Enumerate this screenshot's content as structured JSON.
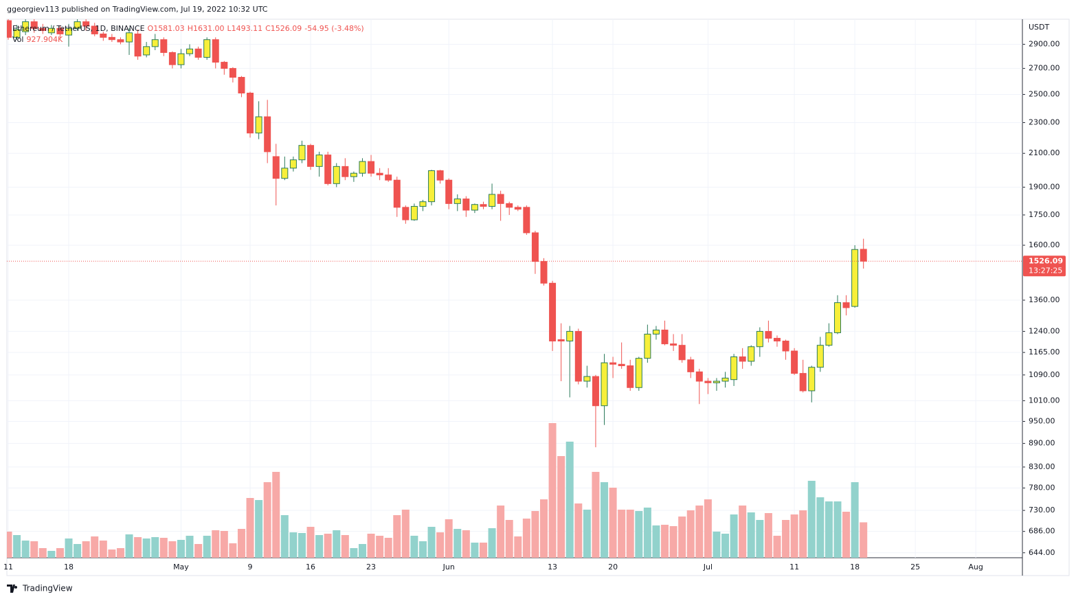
{
  "header": {
    "published": "ggeorgiev113 published on TradingView.com, Jul 19, 2022 10:32 UTC",
    "logo": "TradingView"
  },
  "chart_data": {
    "type": "candlestick",
    "title": "Ethereum / TetherUS, 1D, BINANCE",
    "ohlc_legend": [
      "O1581.03",
      "H1631.00",
      "L1493.11",
      "C1526.09",
      "-54.95 (-3.48%)"
    ],
    "volume_legend": {
      "name": "Vol",
      "value_label": "927.904K"
    },
    "currency": "USDT",
    "countdown": "13:27:25",
    "dates": [
      "2022-04-11",
      "2022-04-12",
      "2022-04-13",
      "2022-04-14",
      "2022-04-15",
      "2022-04-16",
      "2022-04-17",
      "2022-04-18",
      "2022-04-19",
      "2022-04-20",
      "2022-04-21",
      "2022-04-22",
      "2022-04-23",
      "2022-04-24",
      "2022-04-25",
      "2022-04-26",
      "2022-04-27",
      "2022-04-28",
      "2022-04-29",
      "2022-04-30",
      "2022-05-01",
      "2022-05-02",
      "2022-05-03",
      "2022-05-04",
      "2022-05-05",
      "2022-05-06",
      "2022-05-07",
      "2022-05-08",
      "2022-05-09",
      "2022-05-10",
      "2022-05-11",
      "2022-05-12",
      "2022-05-13",
      "2022-05-14",
      "2022-05-15",
      "2022-05-16",
      "2022-05-17",
      "2022-05-18",
      "2022-05-19",
      "2022-05-20",
      "2022-05-21",
      "2022-05-22",
      "2022-05-23",
      "2022-05-24",
      "2022-05-25",
      "2022-05-26",
      "2022-05-27",
      "2022-05-28",
      "2022-05-29",
      "2022-05-30",
      "2022-05-31",
      "2022-06-01",
      "2022-06-02",
      "2022-06-03",
      "2022-06-04",
      "2022-06-05",
      "2022-06-06",
      "2022-06-07",
      "2022-06-08",
      "2022-06-09",
      "2022-06-10",
      "2022-06-11",
      "2022-06-12",
      "2022-06-13",
      "2022-06-14",
      "2022-06-15",
      "2022-06-16",
      "2022-06-17",
      "2022-06-18",
      "2022-06-19",
      "2022-06-20",
      "2022-06-21",
      "2022-06-22",
      "2022-06-23",
      "2022-06-24",
      "2022-06-25",
      "2022-06-26",
      "2022-06-27",
      "2022-06-28",
      "2022-06-29",
      "2022-06-30",
      "2022-07-01",
      "2022-07-02",
      "2022-07-03",
      "2022-07-04",
      "2022-07-05",
      "2022-07-06",
      "2022-07-07",
      "2022-07-08",
      "2022-07-09",
      "2022-07-10",
      "2022-07-11",
      "2022-07-12",
      "2022-07-13",
      "2022-07-14",
      "2022-07-15",
      "2022-07-16",
      "2022-07-17",
      "2022-07-18",
      "2022-07-19"
    ],
    "open": [
      3110,
      2960,
      3010,
      3100,
      3040,
      3000,
      3040,
      2980,
      3040,
      3100,
      3060,
      2990,
      2960,
      2940,
      2920,
      2990,
      2810,
      2880,
      2940,
      2830,
      2730,
      2820,
      2860,
      2790,
      2940,
      2750,
      2700,
      2630,
      2510,
      2230,
      2340,
      2080,
      1950,
      2010,
      2060,
      2150,
      2020,
      2090,
      1920,
      2020,
      1960,
      1980,
      2050,
      1980,
      1970,
      1940,
      1790,
      1725,
      1795,
      1820,
      1995,
      1940,
      1810,
      1835,
      1775,
      1805,
      1795,
      1860,
      1810,
      1790,
      1790,
      1660,
      1525,
      1430,
      1210,
      1205,
      1240,
      1070,
      1085,
      995,
      1130,
      1125,
      1120,
      1050,
      1145,
      1230,
      1245,
      1195,
      1190,
      1140,
      1100,
      1070,
      1065,
      1070,
      1075,
      1150,
      1135,
      1185,
      1240,
      1215,
      1205,
      1170,
      1095,
      1040,
      1115,
      1190,
      1235,
      1350,
      1335,
      1581.03
    ],
    "high": [
      3150,
      3070,
      3130,
      3150,
      3080,
      3070,
      3060,
      3080,
      3180,
      3130,
      3090,
      3010,
      2990,
      2960,
      3040,
      3030,
      2920,
      2990,
      2960,
      2840,
      2860,
      2900,
      2880,
      2960,
      2960,
      2760,
      2710,
      2640,
      2520,
      2450,
      2460,
      2160,
      2080,
      2080,
      2180,
      2160,
      2110,
      2110,
      2040,
      2070,
      1990,
      2070,
      2090,
      2010,
      2010,
      1960,
      1800,
      1810,
      1830,
      2000,
      2000,
      1950,
      1860,
      1850,
      1810,
      1820,
      1920,
      1880,
      1820,
      1800,
      1800,
      1670,
      1540,
      1440,
      1270,
      1260,
      1250,
      1120,
      1090,
      1160,
      1150,
      1200,
      1140,
      1150,
      1265,
      1260,
      1280,
      1230,
      1230,
      1150,
      1110,
      1080,
      1080,
      1100,
      1160,
      1180,
      1190,
      1255,
      1280,
      1225,
      1210,
      1180,
      1140,
      1120,
      1220,
      1270,
      1380,
      1380,
      1600,
      1631.0
    ],
    "low": [
      2940,
      2940,
      2980,
      3000,
      2990,
      2980,
      2950,
      2880,
      3020,
      3020,
      2970,
      2930,
      2920,
      2900,
      2810,
      2770,
      2790,
      2850,
      2800,
      2700,
      2700,
      2800,
      2770,
      2770,
      2700,
      2650,
      2590,
      2480,
      2200,
      2190,
      2040,
      1800,
      1940,
      1990,
      2040,
      2000,
      1960,
      1910,
      1900,
      1940,
      1930,
      1960,
      1960,
      1940,
      1930,
      1740,
      1705,
      1720,
      1770,
      1800,
      1920,
      1780,
      1770,
      1740,
      1760,
      1780,
      1780,
      1720,
      1750,
      1770,
      1650,
      1470,
      1420,
      1170,
      1070,
      1020,
      1060,
      1050,
      880,
      940,
      1080,
      1110,
      1040,
      1040,
      1130,
      1210,
      1190,
      1170,
      1130,
      1080,
      1000,
      1030,
      1040,
      1050,
      1055,
      1110,
      1120,
      1150,
      1200,
      1185,
      1140,
      1090,
      1035,
      1005,
      1100,
      1185,
      1230,
      1300,
      1330,
      1493.11
    ],
    "close": [
      2960,
      3030,
      3100,
      3040,
      3020,
      3040,
      2990,
      3040,
      3100,
      3060,
      2990,
      2960,
      2940,
      2920,
      3000,
      2800,
      2880,
      2940,
      2830,
      2730,
      2820,
      2860,
      2790,
      2940,
      2750,
      2700,
      2630,
      2510,
      2230,
      2340,
      2110,
      1950,
      2010,
      2060,
      2150,
      2020,
      2090,
      1920,
      2020,
      1960,
      1980,
      2050,
      1980,
      1970,
      1940,
      1790,
      1725,
      1795,
      1820,
      1995,
      1940,
      1810,
      1835,
      1775,
      1805,
      1795,
      1860,
      1810,
      1790,
      1780,
      1660,
      1525,
      1430,
      1205,
      1205,
      1240,
      1070,
      1085,
      995,
      1130,
      1125,
      1120,
      1050,
      1145,
      1230,
      1245,
      1195,
      1190,
      1140,
      1100,
      1070,
      1065,
      1070,
      1080,
      1150,
      1135,
      1185,
      1240,
      1215,
      1205,
      1170,
      1095,
      1040,
      1115,
      1190,
      1235,
      1350,
      1330,
      1580,
      1526.09
    ],
    "volume": [
      684000,
      594000,
      450000,
      432000,
      252000,
      180000,
      252000,
      504000,
      360000,
      432000,
      558000,
      450000,
      216000,
      252000,
      612000,
      540000,
      504000,
      540000,
      522000,
      432000,
      468000,
      576000,
      360000,
      576000,
      720000,
      702000,
      378000,
      756000,
      1566000,
      1512000,
      1980000,
      2250000,
      1116000,
      666000,
      648000,
      810000,
      594000,
      630000,
      720000,
      594000,
      252000,
      360000,
      630000,
      576000,
      522000,
      1116000,
      1260000,
      576000,
      432000,
      810000,
      666000,
      1008000,
      756000,
      720000,
      396000,
      396000,
      774000,
      1368000,
      990000,
      558000,
      1026000,
      1224000,
      1530000,
      3528000,
      2664000,
      3042000,
      1422000,
      1260000,
      2250000,
      1980000,
      1836000,
      1260000,
      1260000,
      1224000,
      1314000,
      846000,
      864000,
      828000,
      1080000,
      1242000,
      1368000,
      1530000,
      684000,
      630000,
      1134000,
      1368000,
      1188000,
      990000,
      1170000,
      576000,
      990000,
      1134000,
      1242000,
      2016000,
      1584000,
      1476000,
      1476000,
      1206000,
      1980000,
      927904
    ],
    "log_scale": true,
    "grid": true,
    "ylim": [
      634.6,
      3123
    ],
    "yticks": [
      {
        "value": 2900,
        "label": "2900.00"
      },
      {
        "value": 2700,
        "label": "2700.00"
      },
      {
        "value": 2500,
        "label": "2500.00"
      },
      {
        "value": 2300,
        "label": "2300.00"
      },
      {
        "value": 2100,
        "label": "2100.00"
      },
      {
        "value": 1900,
        "label": "1900.00"
      },
      {
        "value": 1750,
        "label": "1750.00"
      },
      {
        "value": 1600,
        "label": "1600.00"
      },
      {
        "value": 1360,
        "label": "1360.00"
      },
      {
        "value": 1240,
        "label": "1240.00"
      },
      {
        "value": 1165,
        "label": "1165.00"
      },
      {
        "value": 1090,
        "label": "1090.00"
      },
      {
        "value": 1010,
        "label": "1010.00"
      },
      {
        "value": 950,
        "label": "950.00"
      },
      {
        "value": 890,
        "label": "890.00"
      },
      {
        "value": 830,
        "label": "830.00"
      },
      {
        "value": 780,
        "label": "780.00"
      },
      {
        "value": 730,
        "label": "730.00"
      },
      {
        "value": 686,
        "label": "686.00"
      },
      {
        "value": 644,
        "label": "644.00"
      }
    ],
    "xlim": [
      "2022-04-11",
      "2022-08-06"
    ],
    "xticks": [
      {
        "value": "2022-04-11",
        "label": "11"
      },
      {
        "value": "2022-04-18",
        "label": "18"
      },
      {
        "value": "2022-05-01",
        "label": "May"
      },
      {
        "value": "2022-05-09",
        "label": "9"
      },
      {
        "value": "2022-05-16",
        "label": "16"
      },
      {
        "value": "2022-05-23",
        "label": "23"
      },
      {
        "value": "2022-06-01",
        "label": "Jun"
      },
      {
        "value": "2022-06-13",
        "label": "13"
      },
      {
        "value": "2022-06-20",
        "label": "20"
      },
      {
        "value": "2022-07-01",
        "label": "Jul"
      },
      {
        "value": "2022-07-11",
        "label": "11"
      },
      {
        "value": "2022-07-18",
        "label": "18"
      },
      {
        "value": "2022-07-25",
        "label": "25"
      },
      {
        "value": "2022-08-01",
        "label": "Aug"
      }
    ],
    "vlim": [
      0,
      3960000
    ],
    "colors": {
      "up": "#f7ef3a",
      "up_border": "#2a7a5a",
      "down": "#ef5350",
      "volume_up": "#92d2cc",
      "volume_down": "#f7a9a7",
      "grid": "#f0f3fa"
    }
  }
}
